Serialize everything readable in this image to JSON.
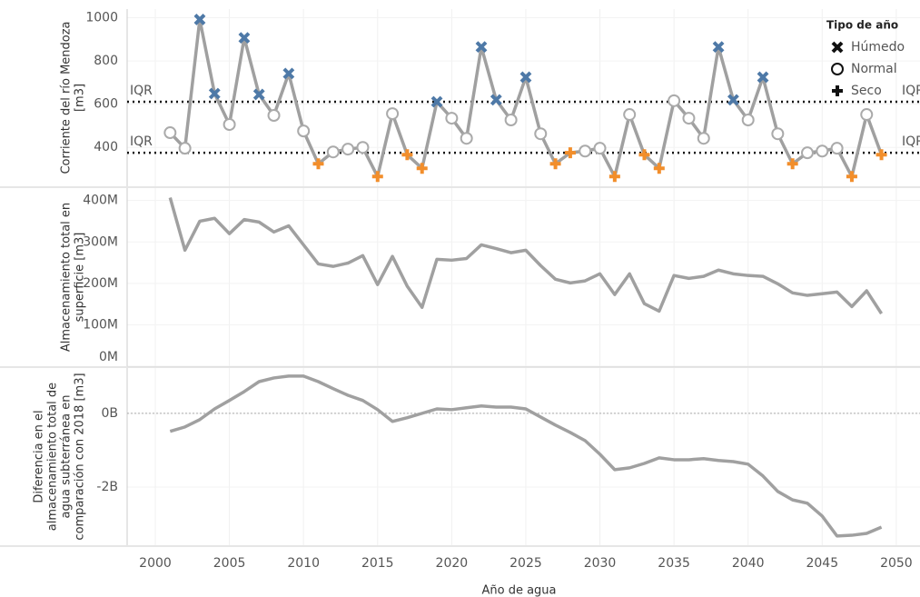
{
  "chart_data": [
    {
      "type": "line",
      "y_label": [
        "Corriente del río Mendoza",
        "[m3]"
      ],
      "x": [
        2001,
        2002,
        2003,
        2004,
        2005,
        2006,
        2007,
        2008,
        2009,
        2010,
        2011,
        2012,
        2013,
        2014,
        2015,
        2016,
        2017,
        2018,
        2019,
        2020,
        2021,
        2022,
        2023,
        2024,
        2025,
        2026,
        2027,
        2028,
        2029,
        2030,
        2031,
        2032,
        2033,
        2034,
        2035,
        2036,
        2037,
        2038,
        2039,
        2040,
        2041,
        2042,
        2043,
        2044,
        2045,
        2046,
        2047,
        2048,
        2049
      ],
      "values": [
        468,
        396,
        992,
        649,
        506,
        907,
        645,
        548,
        742,
        476,
        324,
        379,
        392,
        400,
        265,
        556,
        366,
        303,
        611,
        535,
        442,
        865,
        620,
        527,
        725,
        463,
        324,
        375,
        383,
        396,
        265,
        552,
        366,
        303,
        616,
        535,
        442,
        865,
        620,
        527,
        725,
        463,
        324,
        375,
        383,
        396,
        265,
        552,
        366
      ],
      "point_types": [
        "Normal",
        "Normal",
        "Húmedo",
        "Húmedo",
        "Normal",
        "Húmedo",
        "Húmedo",
        "Normal",
        "Húmedo",
        "Normal",
        "Seco",
        "Normal",
        "Normal",
        "Normal",
        "Seco",
        "Normal",
        "Seco",
        "Seco",
        "Húmedo",
        "Normal",
        "Normal",
        "Húmedo",
        "Húmedo",
        "Normal",
        "Húmedo",
        "Normal",
        "Seco",
        "Seco",
        "Normal",
        "Normal",
        "Seco",
        "Normal",
        "Seco",
        "Seco",
        "Normal",
        "Normal",
        "Normal",
        "Húmedo",
        "Húmedo",
        "Normal",
        "Húmedo",
        "Normal",
        "Seco",
        "Normal",
        "Normal",
        "Normal",
        "Seco",
        "Normal",
        "Seco"
      ],
      "legend_title": "Tipo de año",
      "legend": [
        {
          "name": "Húmedo",
          "marker": "x",
          "color": "#4e79a7"
        },
        {
          "name": "Normal",
          "marker": "circle",
          "color": "#aaaaaa"
        },
        {
          "name": "Seco",
          "marker": "plus",
          "color": "#f28e2b"
        }
      ],
      "reference_lines": [
        {
          "value": 611,
          "label": "IQR"
        },
        {
          "value": 375,
          "label": "IQR"
        }
      ],
      "color": "#a0a0a0",
      "xlim": [
        1998.1,
        2051.6
      ],
      "xticks": [
        2000,
        2005,
        2010,
        2015,
        2020,
        2025,
        2030,
        2035,
        2040,
        2045,
        2050
      ],
      "ylim": [
        220,
        1040
      ],
      "yticks": [
        400,
        600,
        800,
        1000
      ]
    },
    {
      "type": "line",
      "y_label": [
        "Almacenamiento total en",
        "superficie [m3]"
      ],
      "x": [
        2001,
        2002,
        2003,
        2004,
        2005,
        2006,
        2007,
        2008,
        2009,
        2010,
        2011,
        2012,
        2013,
        2014,
        2015,
        2016,
        2017,
        2018,
        2019,
        2020,
        2021,
        2022,
        2023,
        2024,
        2025,
        2026,
        2027,
        2028,
        2029,
        2030,
        2031,
        2032,
        2033,
        2034,
        2035,
        2036,
        2037,
        2038,
        2039,
        2040,
        2041,
        2042,
        2043,
        2044,
        2045,
        2046,
        2047,
        2048,
        2049
      ],
      "values": [
        407000000,
        280000000,
        350000000,
        357000000,
        320000000,
        354000000,
        348000000,
        324000000,
        339000000,
        293000000,
        247000000,
        241000000,
        249000000,
        267000000,
        197000000,
        265000000,
        193000000,
        142000000,
        258000000,
        256000000,
        260000000,
        293000000,
        284000000,
        274000000,
        280000000,
        243000000,
        210000000,
        201000000,
        206000000,
        223000000,
        173000000,
        223000000,
        151000000,
        133000000,
        219000000,
        212000000,
        217000000,
        232000000,
        223000000,
        219000000,
        217000000,
        199000000,
        177000000,
        171000000,
        175000000,
        179000000,
        144000000,
        182000000,
        127000000
      ],
      "color": "#a0a0a0",
      "xlim": [
        1998.1,
        2051.6
      ],
      "xticks": [
        2000,
        2005,
        2010,
        2015,
        2020,
        2025,
        2030,
        2035,
        2040,
        2045,
        2050
      ],
      "ylim": [
        0,
        430000000
      ],
      "yticks": [
        {
          "value": 0,
          "label": "0M"
        },
        {
          "value": 100000000,
          "label": "100M"
        },
        {
          "value": 200000000,
          "label": "200M"
        },
        {
          "value": 300000000,
          "label": "300M"
        },
        {
          "value": 400000000,
          "label": "400M"
        }
      ]
    },
    {
      "type": "line",
      "y_label": [
        "Diferencia en el",
        "almacenamiento total de",
        "agua subterránea en",
        "comparación con 2018 [m3]"
      ],
      "x_label": "Año de agua",
      "x": [
        2001,
        2002,
        2003,
        2004,
        2005,
        2006,
        2007,
        2008,
        2009,
        2010,
        2011,
        2012,
        2013,
        2014,
        2015,
        2016,
        2017,
        2018,
        2019,
        2020,
        2021,
        2022,
        2023,
        2024,
        2025,
        2026,
        2027,
        2028,
        2029,
        2030,
        2031,
        2032,
        2033,
        2034,
        2035,
        2036,
        2037,
        2038,
        2039,
        2040,
        2041,
        2042,
        2043,
        2044,
        2045,
        2046,
        2047,
        2048,
        2049
      ],
      "values": [
        -490000000,
        -370000000,
        -170000000,
        120000000,
        350000000,
        590000000,
        860000000,
        960000000,
        1010000000,
        1010000000,
        860000000,
        670000000,
        490000000,
        350000000,
        100000000,
        -220000000,
        -120000000,
        0,
        120000000,
        100000000,
        150000000,
        200000000,
        170000000,
        170000000,
        120000000,
        -100000000,
        -320000000,
        -520000000,
        -740000000,
        -1110000000,
        -1530000000,
        -1480000000,
        -1360000000,
        -1210000000,
        -1260000000,
        -1260000000,
        -1230000000,
        -1280000000,
        -1310000000,
        -1380000000,
        -1700000000,
        -2120000000,
        -2350000000,
        -2440000000,
        -2790000000,
        -3330000000,
        -3310000000,
        -3260000000,
        -3090000000
      ],
      "color": "#a0a0a0",
      "zero_line": true,
      "xlim": [
        1998.1,
        2051.6
      ],
      "xticks": [
        2000,
        2005,
        2010,
        2015,
        2020,
        2025,
        2030,
        2035,
        2040,
        2045,
        2050
      ],
      "ylim": [
        -3580000000,
        1230000000
      ],
      "yticks": [
        {
          "value": -2000000000,
          "label": "-2B"
        },
        {
          "value": 0,
          "label": "0B"
        }
      ]
    }
  ]
}
